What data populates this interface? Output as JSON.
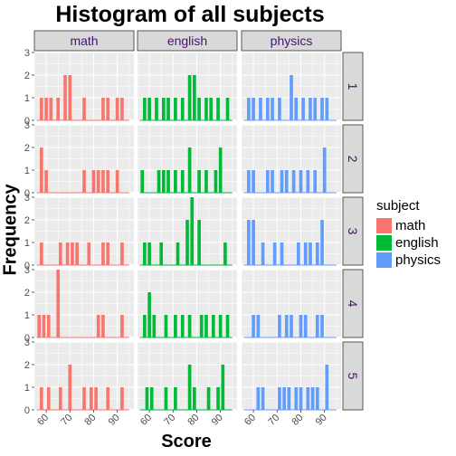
{
  "chart_data": {
    "type": "bar",
    "title": "Histogram of all subjects",
    "xlabel": "Score",
    "ylabel": "Frequency",
    "facet_columns": [
      "math",
      "english",
      "physics"
    ],
    "facet_rows": [
      "1",
      "2",
      "3",
      "4",
      "5"
    ],
    "xlim": [
      55,
      97
    ],
    "ylim": [
      0,
      3
    ],
    "x_ticks": [
      60,
      70,
      80,
      90
    ],
    "y_ticks": [
      0,
      1,
      2,
      3
    ],
    "grid": true,
    "legend": {
      "title": "subject",
      "position": "right",
      "items": [
        {
          "name": "math",
          "color": "#F8766D"
        },
        {
          "name": "english",
          "color": "#00BA38"
        },
        {
          "name": "physics",
          "color": "#619CFF"
        }
      ]
    },
    "bin_width": 1.4,
    "panels": [
      {
        "column": "math",
        "row": "1",
        "x": [
          58,
          60,
          62,
          65,
          68,
          70,
          76,
          84,
          86,
          90,
          92
        ],
        "values": [
          1,
          1,
          1,
          1,
          2,
          2,
          1,
          1,
          1,
          1,
          1
        ]
      },
      {
        "column": "english",
        "row": "1",
        "x": [
          58,
          60,
          63,
          66,
          68,
          71,
          74,
          77,
          79,
          81,
          84,
          86,
          89,
          93
        ],
        "values": [
          1,
          1,
          1,
          1,
          1,
          1,
          1,
          2,
          2,
          1,
          1,
          1,
          1,
          1
        ]
      },
      {
        "column": "physics",
        "row": "1",
        "x": [
          58,
          60,
          63,
          66,
          68,
          71,
          76,
          78,
          81,
          84,
          86,
          89,
          91
        ],
        "values": [
          1,
          1,
          1,
          1,
          1,
          1,
          2,
          1,
          1,
          1,
          1,
          1,
          1
        ]
      },
      {
        "column": "math",
        "row": "2",
        "x": [
          58,
          60,
          76,
          80,
          82,
          84,
          86,
          90
        ],
        "values": [
          2,
          1,
          1,
          1,
          1,
          1,
          1,
          1
        ]
      },
      {
        "column": "english",
        "row": "2",
        "x": [
          57,
          64,
          66,
          68,
          71,
          74,
          77,
          81,
          84,
          88,
          90
        ],
        "values": [
          1,
          1,
          1,
          1,
          1,
          1,
          2,
          1,
          1,
          1,
          2
        ]
      },
      {
        "column": "physics",
        "row": "2",
        "x": [
          58,
          60,
          66,
          68,
          72,
          74,
          77,
          80,
          83,
          86,
          90
        ],
        "values": [
          1,
          1,
          1,
          1,
          1,
          1,
          1,
          1,
          1,
          1,
          2
        ]
      },
      {
        "column": "math",
        "row": "3",
        "x": [
          58,
          66,
          69,
          71,
          73,
          78,
          84,
          86,
          92
        ],
        "values": [
          1,
          1,
          1,
          1,
          1,
          1,
          1,
          1,
          1
        ]
      },
      {
        "column": "english",
        "row": "3",
        "x": [
          58,
          60,
          65,
          72,
          76,
          78,
          81,
          92
        ],
        "values": [
          1,
          1,
          1,
          1,
          2,
          3,
          2,
          1
        ]
      },
      {
        "column": "physics",
        "row": "3",
        "x": [
          58,
          60,
          64,
          69,
          72,
          79,
          82,
          84,
          87,
          89
        ],
        "values": [
          2,
          2,
          1,
          1,
          1,
          1,
          1,
          1,
          1,
          2
        ]
      },
      {
        "column": "math",
        "row": "4",
        "x": [
          57,
          59,
          61,
          65,
          82,
          84,
          92
        ],
        "values": [
          1,
          1,
          1,
          3,
          1,
          1,
          1
        ]
      },
      {
        "column": "english",
        "row": "4",
        "x": [
          58,
          60,
          62,
          67,
          71,
          74,
          77,
          82,
          84,
          87,
          90,
          93
        ],
        "values": [
          1,
          2,
          1,
          1,
          1,
          1,
          1,
          1,
          1,
          1,
          1,
          1
        ]
      },
      {
        "column": "physics",
        "row": "4",
        "x": [
          60,
          62,
          71,
          74,
          76,
          80,
          82,
          87,
          89
        ],
        "values": [
          1,
          1,
          1,
          1,
          1,
          1,
          1,
          1,
          1
        ]
      },
      {
        "column": "math",
        "row": "5",
        "x": [
          58,
          61,
          66,
          70,
          76,
          79,
          81,
          86,
          92
        ],
        "values": [
          1,
          1,
          1,
          2,
          1,
          1,
          1,
          1,
          1
        ]
      },
      {
        "column": "english",
        "row": "5",
        "x": [
          59,
          61,
          67,
          71,
          77,
          79,
          85,
          89,
          91
        ],
        "values": [
          1,
          1,
          1,
          1,
          2,
          1,
          1,
          1,
          2
        ]
      },
      {
        "column": "physics",
        "row": "5",
        "x": [
          62,
          64,
          71,
          73,
          75,
          78,
          80,
          83,
          85,
          87,
          91
        ],
        "values": [
          1,
          1,
          1,
          1,
          1,
          1,
          1,
          1,
          1,
          1,
          2
        ]
      }
    ]
  },
  "colors": {
    "panel_background": "#ebebeb",
    "grid_line": "#ffffff",
    "strip_background": "#d9d9d9",
    "strip_border": "#333333",
    "strip_text": "#4b0f74",
    "axis_text": "#4d4d4d"
  }
}
